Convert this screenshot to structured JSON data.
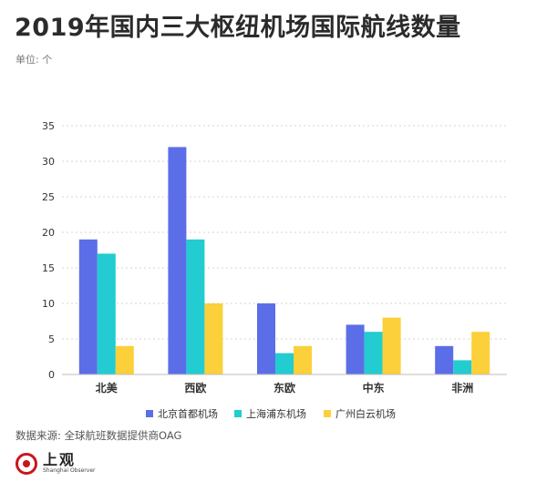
{
  "page": {
    "title": "2019年国内三大枢纽机场国际航线数量",
    "unit_label": "单位: 个",
    "source": "数据来源: 全球航班数据提供商OAG",
    "logo_name": "上观",
    "logo_sub": "Shanghai Observer"
  },
  "chart_data": {
    "type": "bar",
    "title": "2019年国内三大枢纽机场国际航线数量",
    "xlabel": "",
    "ylabel": "单位: 个",
    "categories": [
      "北美",
      "西欧",
      "东欧",
      "中东",
      "非洲"
    ],
    "ylim": [
      0,
      35
    ],
    "yticks": [
      0,
      5,
      10,
      15,
      20,
      25,
      30,
      35
    ],
    "grid": true,
    "legend_position": "bottom",
    "series": [
      {
        "name": "北京首都机场",
        "color": "#5b6ee8",
        "values": [
          19,
          32,
          10,
          7,
          4
        ]
      },
      {
        "name": "上海浦东机场",
        "color": "#22ccd0",
        "values": [
          17,
          19,
          3,
          6,
          2
        ]
      },
      {
        "name": "广州白云机场",
        "color": "#fbd03a",
        "values": [
          4,
          10,
          4,
          8,
          6
        ]
      }
    ]
  }
}
